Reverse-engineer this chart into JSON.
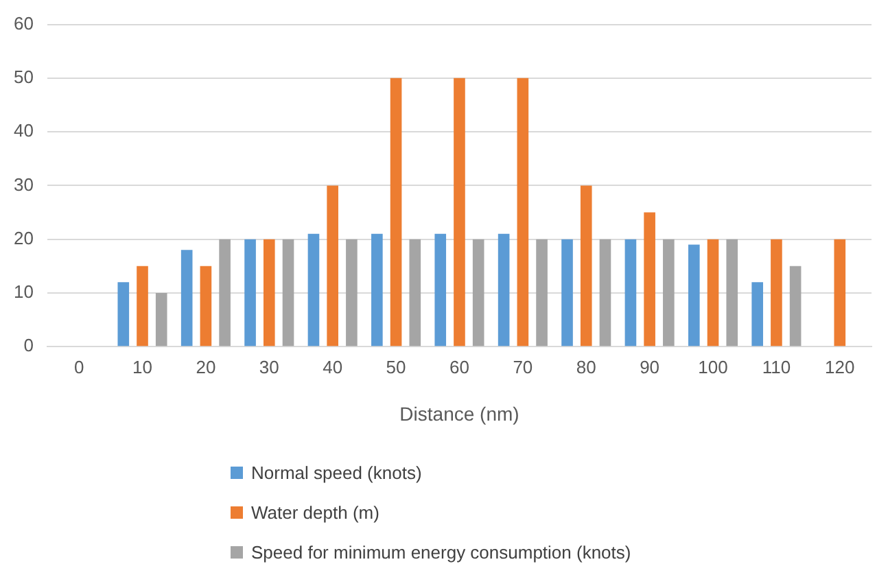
{
  "chart_data": {
    "type": "bar",
    "xlabel": "Distance (nm)",
    "categories": [
      "0",
      "10",
      "20",
      "30",
      "40",
      "50",
      "60",
      "70",
      "80",
      "90",
      "100",
      "110",
      "120"
    ],
    "series": [
      {
        "name": "Normal speed (knots)",
        "color": "#5b9bd5",
        "values": [
          null,
          12,
          18,
          20,
          21,
          21,
          21,
          21,
          20,
          20,
          19,
          12,
          null
        ]
      },
      {
        "name": "Water depth (m)",
        "color": "#ed7d31",
        "values": [
          null,
          15,
          15,
          20,
          30,
          50,
          50,
          50,
          30,
          25,
          20,
          20,
          20
        ]
      },
      {
        "name": "Speed for minimum energy consumption (knots)",
        "color": "#a5a5a5",
        "values": [
          null,
          10,
          20,
          20,
          20,
          20,
          20,
          20,
          20,
          20,
          20,
          15,
          null
        ]
      }
    ],
    "ylim": [
      0,
      60
    ],
    "yticks": [
      0,
      10,
      20,
      30,
      40,
      50,
      60
    ],
    "grid": "y",
    "legend": "bottom"
  }
}
